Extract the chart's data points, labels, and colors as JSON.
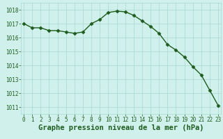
{
  "x": [
    0,
    1,
    2,
    3,
    4,
    5,
    6,
    7,
    8,
    9,
    10,
    11,
    12,
    13,
    14,
    15,
    16,
    17,
    18,
    19,
    20,
    21,
    22,
    23
  ],
  "y": [
    1017.0,
    1016.7,
    1016.7,
    1016.5,
    1016.5,
    1016.4,
    1016.3,
    1016.4,
    1017.0,
    1017.3,
    1017.8,
    1017.9,
    1017.85,
    1017.6,
    1017.2,
    1016.8,
    1016.3,
    1015.5,
    1015.1,
    1014.6,
    1013.9,
    1013.3,
    1012.2,
    1011.1
  ],
  "line_color": "#1e5c1e",
  "marker": "D",
  "marker_size": 2.5,
  "bg_color": "#cff0eb",
  "grid_color": "#a8d8d0",
  "xlabel": "Graphe pression niveau de la mer (hPa)",
  "xlabel_fontsize": 7.5,
  "ylabel_ticks": [
    1011,
    1012,
    1013,
    1014,
    1015,
    1016,
    1017,
    1018
  ],
  "xticks": [
    0,
    1,
    2,
    3,
    4,
    5,
    6,
    7,
    8,
    9,
    10,
    11,
    12,
    13,
    14,
    15,
    16,
    17,
    18,
    19,
    20,
    21,
    22,
    23
  ],
  "ylim": [
    1010.5,
    1018.5
  ],
  "xlim": [
    -0.3,
    23.3
  ],
  "tick_fontsize": 5.5,
  "line_width": 1.0
}
